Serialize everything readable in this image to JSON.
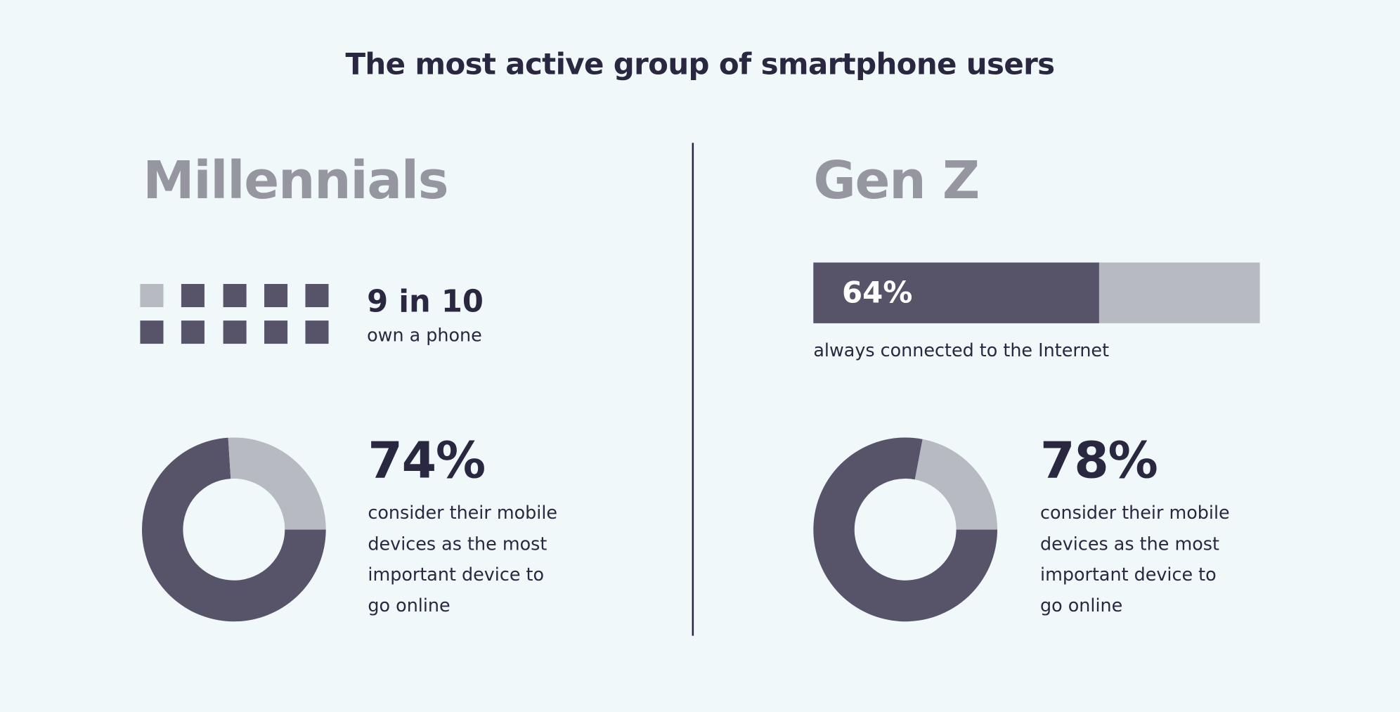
{
  "title": "The most active group of smartphone users",
  "colors": {
    "background": "#f1f8fa",
    "dark": "#57546a",
    "light": "#b7bac1",
    "text": "#2a2840",
    "heading": "#9596a0"
  },
  "millennials": {
    "heading": "Millennials",
    "icon_array": {
      "total": 10,
      "filled": 9
    },
    "ownership_stat": "9 in 10",
    "ownership_label": "own a phone",
    "donut_value": 74,
    "donut_label": "74%",
    "donut_text": [
      "consider their mobile",
      "devices as the most",
      "important device to",
      "go online"
    ]
  },
  "genz": {
    "heading": "Gen Z",
    "bar_value": 64,
    "bar_label": "64%",
    "bar_text": "always connected to the Internet",
    "donut_value": 78,
    "donut_label": "78%",
    "donut_text": [
      "consider their mobile",
      "devices as the most",
      "important device to",
      "go online"
    ]
  },
  "chart_data": [
    {
      "type": "icon-array",
      "group": "Millennials",
      "filled": 9,
      "total": 10,
      "label": "9 in 10 own a phone"
    },
    {
      "type": "bar",
      "group": "Gen Z",
      "values": [
        64
      ],
      "max": 100,
      "label": "always connected to the Internet"
    },
    {
      "type": "pie",
      "group": "Millennials",
      "values": [
        74,
        26
      ],
      "label": "74%"
    },
    {
      "type": "pie",
      "group": "Gen Z",
      "values": [
        78,
        22
      ],
      "label": "78%"
    }
  ]
}
